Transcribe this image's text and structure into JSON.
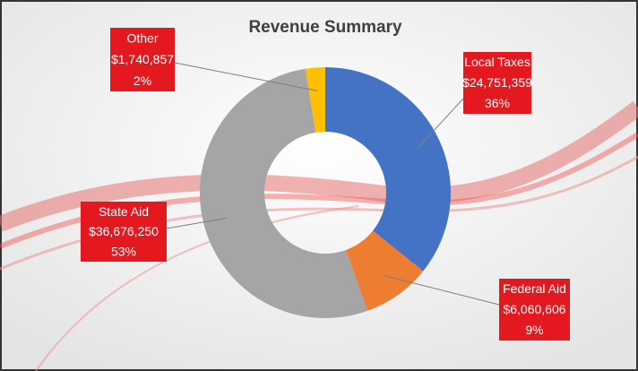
{
  "chart_data": {
    "type": "donut",
    "title": "Revenue Summary",
    "categories": [
      "Local Taxes",
      "Federal Aid",
      "State Aid",
      "Other"
    ],
    "values": [
      24751359,
      6060606,
      36676250,
      1740857
    ],
    "value_labels": [
      "$24,751,359",
      "$6,060,606",
      "$36,676,250",
      "$1,740,857"
    ],
    "percent_labels": [
      "36%",
      "9%",
      "53%",
      "2%"
    ],
    "colors": [
      "#4472c4",
      "#ed7d31",
      "#a5a5a5",
      "#ffc000"
    ]
  }
}
